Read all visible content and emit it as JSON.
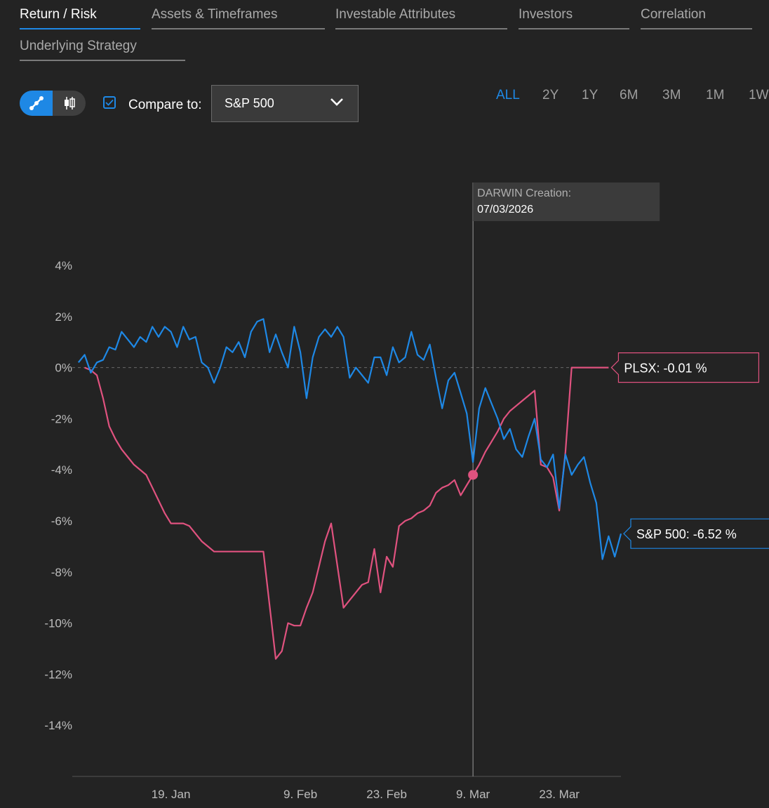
{
  "tabs": [
    {
      "label": "Return / Risk",
      "active": true
    },
    {
      "label": "Assets & Timeframes",
      "active": false
    },
    {
      "label": "Investable Attributes",
      "active": false
    },
    {
      "label": "Investors",
      "active": false
    },
    {
      "label": "Correlation",
      "active": false
    },
    {
      "label": "Underlying Strategy",
      "active": false
    }
  ],
  "controls": {
    "view_toggle": {
      "line_icon": "line-chart-icon",
      "candle_icon": "candlestick-icon",
      "selected": "line"
    },
    "compare_checked": true,
    "compare_label": "Compare to:",
    "compare_value": "S&P 500",
    "ranges": [
      "ALL",
      "2Y",
      "1Y",
      "6M",
      "3M",
      "1M",
      "1W"
    ],
    "active_range": "ALL"
  },
  "colors": {
    "accent": "#1e88e5",
    "sp500": "#1e88e5",
    "plsx": "#e0527f",
    "background": "#232323"
  },
  "chart_data": {
    "type": "line",
    "x_unit": "date",
    "ylim": [
      -16,
      4
    ],
    "y_ticks": [
      4,
      2,
      0,
      -2,
      -4,
      -6,
      -8,
      -10,
      -12,
      -14
    ],
    "y_tick_labels": [
      "4%",
      "2%",
      "0%",
      "-2%",
      "-4%",
      "-6%",
      "-8%",
      "-10%",
      "-12%",
      "-14%"
    ],
    "x_ticks": [
      {
        "date": "2026-01-19",
        "label": "19. Jan"
      },
      {
        "date": "2026-02-09",
        "label": "9. Feb"
      },
      {
        "date": "2026-02-23",
        "label": "23. Feb"
      },
      {
        "date": "2026-03-09",
        "label": "9. Mar"
      },
      {
        "date": "2026-03-23",
        "label": "23. Mar"
      }
    ],
    "xlim": [
      "2026-01-03",
      "2026-04-02"
    ],
    "annotation": {
      "date": "2026-03-09",
      "title": "DARWIN Creation:",
      "value": "07/03/2026"
    },
    "series": [
      {
        "name": "PLSX",
        "end_label": "PLSX: -0.01 %",
        "points": [
          [
            "2026-01-05",
            0.0
          ],
          [
            "2026-01-06",
            -0.1
          ],
          [
            "2026-01-07",
            -0.3
          ],
          [
            "2026-01-08",
            -1.2
          ],
          [
            "2026-01-09",
            -2.3
          ],
          [
            "2026-01-10",
            -2.8
          ],
          [
            "2026-01-11",
            -3.2
          ],
          [
            "2026-01-12",
            -3.5
          ],
          [
            "2026-01-13",
            -3.8
          ],
          [
            "2026-01-15",
            -4.2
          ],
          [
            "2026-01-16",
            -4.7
          ],
          [
            "2026-01-17",
            -5.2
          ],
          [
            "2026-01-18",
            -5.7
          ],
          [
            "2026-01-19",
            -6.1
          ],
          [
            "2026-01-20",
            -6.1
          ],
          [
            "2026-01-21",
            -6.1
          ],
          [
            "2026-01-22",
            -6.2
          ],
          [
            "2026-01-23",
            -6.5
          ],
          [
            "2026-01-24",
            -6.8
          ],
          [
            "2026-01-25",
            -7.0
          ],
          [
            "2026-01-26",
            -7.2
          ],
          [
            "2026-02-03",
            -7.2
          ],
          [
            "2026-02-05",
            -11.4
          ],
          [
            "2026-02-06",
            -11.1
          ],
          [
            "2026-02-07",
            -10.0
          ],
          [
            "2026-02-08",
            -10.1
          ],
          [
            "2026-02-09",
            -10.1
          ],
          [
            "2026-02-10",
            -9.4
          ],
          [
            "2026-02-11",
            -8.8
          ],
          [
            "2026-02-12",
            -7.8
          ],
          [
            "2026-02-13",
            -6.8
          ],
          [
            "2026-02-14",
            -6.1
          ],
          [
            "2026-02-16",
            -9.4
          ],
          [
            "2026-02-17",
            -9.1
          ],
          [
            "2026-02-18",
            -8.8
          ],
          [
            "2026-02-19",
            -8.5
          ],
          [
            "2026-02-20",
            -8.4
          ],
          [
            "2026-02-21",
            -7.1
          ],
          [
            "2026-02-22",
            -8.8
          ],
          [
            "2026-02-23",
            -7.4
          ],
          [
            "2026-02-24",
            -7.8
          ],
          [
            "2026-02-25",
            -6.2
          ],
          [
            "2026-02-26",
            -6.0
          ],
          [
            "2026-02-27",
            -5.9
          ],
          [
            "2026-02-28",
            -5.7
          ],
          [
            "2026-03-01",
            -5.6
          ],
          [
            "2026-03-02",
            -5.4
          ],
          [
            "2026-03-03",
            -4.9
          ],
          [
            "2026-03-04",
            -4.7
          ],
          [
            "2026-03-05",
            -4.6
          ],
          [
            "2026-03-06",
            -4.4
          ],
          [
            "2026-03-07",
            -5.0
          ],
          [
            "2026-03-08",
            -4.6
          ],
          [
            "2026-03-09",
            -4.2
          ],
          [
            "2026-03-10",
            -3.8
          ],
          [
            "2026-03-11",
            -3.3
          ],
          [
            "2026-03-12",
            -2.9
          ],
          [
            "2026-03-13",
            -2.5
          ],
          [
            "2026-03-14",
            -2.0
          ],
          [
            "2026-03-15",
            -1.7
          ],
          [
            "2026-03-16",
            -1.5
          ],
          [
            "2026-03-17",
            -1.3
          ],
          [
            "2026-03-18",
            -1.1
          ],
          [
            "2026-03-19",
            -0.9
          ],
          [
            "2026-03-20",
            -3.8
          ],
          [
            "2026-03-21",
            -3.9
          ],
          [
            "2026-03-22",
            -4.3
          ],
          [
            "2026-03-23",
            -5.6
          ],
          [
            "2026-03-24",
            -3.3
          ],
          [
            "2026-03-25",
            0.0
          ],
          [
            "2026-03-26",
            0.0
          ],
          [
            "2026-03-27",
            0.0
          ],
          [
            "2026-03-28",
            0.0
          ],
          [
            "2026-03-29",
            0.0
          ],
          [
            "2026-03-30",
            0.0
          ],
          [
            "2026-03-31",
            0.0
          ]
        ]
      },
      {
        "name": "S&P 500",
        "end_label": "S&P 500: -6.52 %",
        "points": [
          [
            "2026-01-04",
            0.2
          ],
          [
            "2026-01-05",
            0.5
          ],
          [
            "2026-01-06",
            -0.2
          ],
          [
            "2026-01-07",
            0.2
          ],
          [
            "2026-01-08",
            0.3
          ],
          [
            "2026-01-09",
            0.8
          ],
          [
            "2026-01-10",
            0.7
          ],
          [
            "2026-01-11",
            1.4
          ],
          [
            "2026-01-12",
            1.1
          ],
          [
            "2026-01-13",
            0.8
          ],
          [
            "2026-01-14",
            1.2
          ],
          [
            "2026-01-15",
            1.0
          ],
          [
            "2026-01-16",
            1.6
          ],
          [
            "2026-01-17",
            1.2
          ],
          [
            "2026-01-18",
            1.6
          ],
          [
            "2026-01-19",
            1.4
          ],
          [
            "2026-01-20",
            0.8
          ],
          [
            "2026-01-21",
            1.6
          ],
          [
            "2026-01-22",
            1.1
          ],
          [
            "2026-01-23",
            1.2
          ],
          [
            "2026-01-24",
            0.2
          ],
          [
            "2026-01-25",
            0.0
          ],
          [
            "2026-01-26",
            -0.6
          ],
          [
            "2026-01-27",
            0.0
          ],
          [
            "2026-01-28",
            0.8
          ],
          [
            "2026-01-29",
            0.6
          ],
          [
            "2026-01-30",
            1.0
          ],
          [
            "2026-01-31",
            0.4
          ],
          [
            "2026-02-01",
            1.4
          ],
          [
            "2026-02-02",
            1.8
          ],
          [
            "2026-02-03",
            1.9
          ],
          [
            "2026-02-04",
            0.6
          ],
          [
            "2026-02-05",
            1.3
          ],
          [
            "2026-02-06",
            0.6
          ],
          [
            "2026-02-07",
            0.0
          ],
          [
            "2026-02-08",
            1.6
          ],
          [
            "2026-02-09",
            0.6
          ],
          [
            "2026-02-10",
            -1.2
          ],
          [
            "2026-02-11",
            0.4
          ],
          [
            "2026-02-12",
            1.2
          ],
          [
            "2026-02-13",
            1.5
          ],
          [
            "2026-02-14",
            1.2
          ],
          [
            "2026-02-15",
            1.6
          ],
          [
            "2026-02-16",
            1.2
          ],
          [
            "2026-02-17",
            -0.4
          ],
          [
            "2026-02-18",
            0.0
          ],
          [
            "2026-02-19",
            -0.3
          ],
          [
            "2026-02-20",
            -0.6
          ],
          [
            "2026-02-21",
            0.4
          ],
          [
            "2026-02-22",
            0.4
          ],
          [
            "2026-02-23",
            -0.3
          ],
          [
            "2026-02-24",
            0.8
          ],
          [
            "2026-02-25",
            0.2
          ],
          [
            "2026-02-26",
            0.4
          ],
          [
            "2026-02-27",
            1.4
          ],
          [
            "2026-02-28",
            0.5
          ],
          [
            "2026-03-01",
            0.3
          ],
          [
            "2026-03-02",
            0.9
          ],
          [
            "2026-03-03",
            -0.4
          ],
          [
            "2026-03-04",
            -1.6
          ],
          [
            "2026-03-05",
            -0.5
          ],
          [
            "2026-03-06",
            -0.2
          ],
          [
            "2026-03-07",
            -1.0
          ],
          [
            "2026-03-08",
            -1.8
          ],
          [
            "2026-03-09",
            -3.7
          ],
          [
            "2026-03-10",
            -1.6
          ],
          [
            "2026-03-11",
            -0.8
          ],
          [
            "2026-03-12",
            -1.4
          ],
          [
            "2026-03-13",
            -2.0
          ],
          [
            "2026-03-14",
            -2.8
          ],
          [
            "2026-03-15",
            -2.4
          ],
          [
            "2026-03-16",
            -3.2
          ],
          [
            "2026-03-17",
            -3.5
          ],
          [
            "2026-03-18",
            -2.7
          ],
          [
            "2026-03-19",
            -2.0
          ],
          [
            "2026-03-20",
            -3.6
          ],
          [
            "2026-03-21",
            -3.9
          ],
          [
            "2026-03-22",
            -3.4
          ],
          [
            "2026-03-23",
            -5.5
          ],
          [
            "2026-03-24",
            -3.4
          ],
          [
            "2026-03-25",
            -4.2
          ],
          [
            "2026-03-26",
            -3.8
          ],
          [
            "2026-03-27",
            -3.5
          ],
          [
            "2026-03-28",
            -4.5
          ],
          [
            "2026-03-29",
            -5.3
          ],
          [
            "2026-03-30",
            -7.5
          ],
          [
            "2026-03-31",
            -6.6
          ],
          [
            "2026-04-01",
            -7.4
          ],
          [
            "2026-04-02",
            -6.5
          ]
        ]
      }
    ]
  }
}
